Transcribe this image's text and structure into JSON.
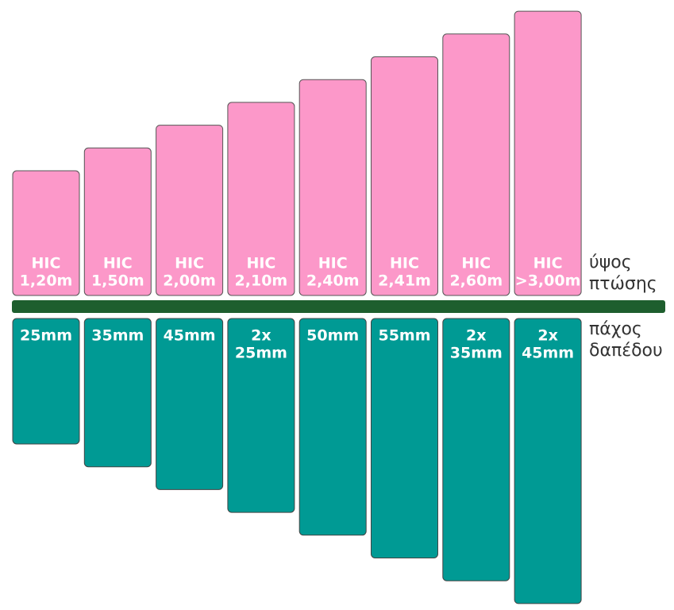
{
  "columns": [
    {
      "top": [
        "HIC",
        "1,20m"
      ],
      "bottom": [
        "25mm"
      ]
    },
    {
      "top": [
        "HIC",
        "1,50m"
      ],
      "bottom": [
        "35mm"
      ]
    },
    {
      "top": [
        "HIC",
        "2,00m"
      ],
      "bottom": [
        "45mm"
      ]
    },
    {
      "top": [
        "HIC",
        "2,10m"
      ],
      "bottom": [
        "2x",
        "25mm"
      ]
    },
    {
      "top": [
        "HIC",
        "2,40m"
      ],
      "bottom": [
        "50mm"
      ]
    },
    {
      "top": [
        "HIC",
        "2,41m"
      ],
      "bottom": [
        "55mm"
      ]
    },
    {
      "top": [
        "HIC",
        "2,60m"
      ],
      "bottom": [
        "2x",
        "35mm"
      ]
    },
    {
      "top": [
        "HIC",
        ">3,00m"
      ],
      "bottom": [
        "2x",
        "45mm"
      ]
    }
  ],
  "labels": {
    "top": [
      "ύψος",
      "πτώσης"
    ],
    "bottom": [
      "πάχος",
      "δαπέδου"
    ]
  }
}
